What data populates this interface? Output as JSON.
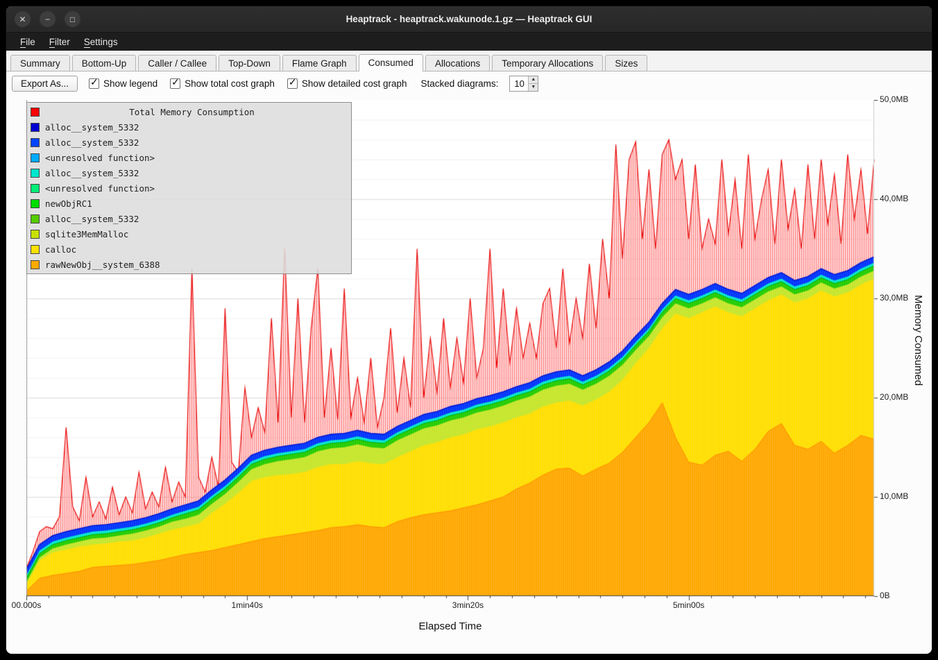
{
  "window": {
    "title": "Heaptrack - heaptrack.wakunode.1.gz — Heaptrack GUI",
    "buttons": [
      {
        "name": "close",
        "glyph": "✕"
      },
      {
        "name": "minimize",
        "glyph": "−"
      },
      {
        "name": "maximize",
        "glyph": "□"
      }
    ]
  },
  "menubar": {
    "items": [
      {
        "label": "File",
        "accel": "F"
      },
      {
        "label": "Filter",
        "accel": "F"
      },
      {
        "label": "Settings",
        "accel": "S"
      }
    ]
  },
  "tabs": {
    "items": [
      "Summary",
      "Bottom-Up",
      "Caller / Callee",
      "Top-Down",
      "Flame Graph",
      "Consumed",
      "Allocations",
      "Temporary Allocations",
      "Sizes"
    ],
    "active": "Consumed"
  },
  "toolbar": {
    "export_label": "Export As...",
    "checkboxes": [
      {
        "label": "Show legend",
        "checked": true
      },
      {
        "label": "Show total cost graph",
        "checked": true
      },
      {
        "label": "Show detailed cost graph",
        "checked": true
      }
    ],
    "stacked_label": "Stacked diagrams:",
    "stacked_value": "10"
  },
  "legend": {
    "title": "Total Memory Consumption",
    "title_color": "#ff0000",
    "entries": [
      {
        "color": "#0000d0",
        "label": "alloc__system_5332"
      },
      {
        "color": "#0044ff",
        "label": "alloc__system_5332"
      },
      {
        "color": "#00aaff",
        "label": "<unresolved function>"
      },
      {
        "color": "#00e6cc",
        "label": "alloc__system_5332"
      },
      {
        "color": "#00ee77",
        "label": "<unresolved function>"
      },
      {
        "color": "#00dd00",
        "label": "newObjRC1"
      },
      {
        "color": "#55cc00",
        "label": "alloc__system_5332"
      },
      {
        "color": "#c8e000",
        "label": "sqlite3MemMalloc"
      },
      {
        "color": "#ffe000",
        "label": "calloc"
      },
      {
        "color": "#ffaa00",
        "label": "rawNewObj__system_6388"
      }
    ]
  },
  "chart_data": {
    "type": "area",
    "stacked": true,
    "title": "Total Memory Consumption",
    "x_label": "Elapsed Time",
    "y_label": "Memory Consumed",
    "x_unit": "s",
    "y_unit": "MB",
    "x_max": 384,
    "ylim": [
      0,
      50
    ],
    "grid": {
      "minor_step": 2,
      "major_step": 10
    },
    "y_ticks": [
      {
        "v": 0,
        "label": "0B"
      },
      {
        "v": 10,
        "label": "10,0MB"
      },
      {
        "v": 20,
        "label": "20,0MB"
      },
      {
        "v": 30,
        "label": "30,0MB"
      },
      {
        "v": 40,
        "label": "40,0MB"
      },
      {
        "v": 50,
        "label": "50,0MB"
      }
    ],
    "x_ticks": [
      {
        "t": 0,
        "label": "00.000s"
      },
      {
        "t": 100,
        "label": "1min40s"
      },
      {
        "t": 200,
        "label": "3min20s"
      },
      {
        "t": 300,
        "label": "5min00s"
      }
    ],
    "bands_t_step": 6,
    "bands_note": "cumulative stacked tops in MB, outermost first, sampled every 6s",
    "bands": [
      {
        "name": "alloc__system_5332",
        "color": "#0033ff",
        "stroke": "#0018d4",
        "values": [
          2.7,
          5.2,
          6.1,
          6.5,
          6.8,
          7.1,
          7.2,
          7.4,
          7.6,
          7.9,
          8.3,
          8.8,
          9.2,
          9.6,
          10.7,
          11.7,
          12.9,
          14.2,
          14.7,
          15.0,
          15.2,
          15.4,
          16.0,
          16.3,
          16.4,
          16.7,
          16.4,
          16.3,
          17.1,
          17.7,
          18.3,
          18.6,
          19.1,
          19.4,
          19.9,
          20.2,
          20.6,
          21.1,
          21.5,
          22.2,
          22.6,
          22.8,
          22.2,
          22.8,
          23.6,
          24.7,
          26.2,
          27.6,
          29.5,
          30.9,
          30.4,
          30.9,
          31.5,
          30.9,
          30.5,
          31.3,
          32.1,
          32.6,
          31.8,
          32.2,
          33.0,
          32.4,
          32.8,
          33.6,
          34.2
        ]
      },
      {
        "name": "<unresolved function>",
        "color": "#00e6cc",
        "values": [
          2.1,
          4.6,
          5.5,
          5.9,
          6.2,
          6.5,
          6.6,
          6.8,
          7.0,
          7.3,
          7.7,
          8.2,
          8.6,
          9.0,
          10.1,
          11.1,
          12.3,
          13.6,
          14.1,
          14.4,
          14.6,
          14.8,
          15.4,
          15.7,
          15.8,
          16.1,
          15.8,
          15.7,
          16.5,
          17.1,
          17.7,
          18.0,
          18.5,
          18.8,
          19.3,
          19.6,
          20.0,
          20.5,
          20.9,
          21.6,
          22.0,
          22.2,
          21.6,
          22.2,
          23.0,
          24.1,
          25.6,
          27.0,
          28.9,
          30.3,
          29.8,
          30.3,
          30.9,
          30.3,
          29.9,
          30.7,
          31.5,
          32.0,
          31.2,
          31.6,
          32.4,
          31.8,
          32.2,
          33.0,
          33.6
        ]
      },
      {
        "name": "newObjRC1",
        "color": "#22cc00",
        "stroke": "#00b000",
        "values": [
          1.8,
          4.3,
          5.2,
          5.6,
          5.9,
          6.2,
          6.3,
          6.5,
          6.7,
          7.0,
          7.4,
          7.9,
          8.3,
          8.7,
          9.8,
          10.8,
          12.0,
          13.3,
          13.8,
          14.1,
          14.3,
          14.5,
          15.1,
          15.4,
          15.5,
          15.8,
          15.5,
          15.4,
          16.2,
          16.8,
          17.4,
          17.7,
          18.2,
          18.5,
          19.0,
          19.3,
          19.7,
          20.2,
          20.6,
          21.3,
          21.7,
          21.9,
          21.3,
          21.9,
          22.7,
          23.8,
          25.3,
          26.7,
          28.6,
          30.0,
          29.5,
          30.0,
          30.6,
          30.0,
          29.6,
          30.4,
          31.2,
          31.7,
          30.9,
          31.3,
          32.1,
          31.5,
          31.9,
          32.7,
          33.3
        ]
      },
      {
        "name": "sqlite3MemMalloc",
        "color": "#c6e62a",
        "values": [
          1.4,
          3.9,
          4.8,
          5.2,
          5.5,
          5.8,
          5.9,
          6.1,
          6.3,
          6.6,
          7.0,
          7.5,
          7.8,
          8.2,
          9.3,
          10.3,
          11.5,
          12.8,
          13.3,
          13.6,
          13.8,
          14.0,
          14.6,
          14.9,
          15.0,
          15.3,
          15.0,
          14.9,
          15.7,
          16.3,
          16.9,
          17.2,
          17.7,
          18.0,
          18.5,
          18.8,
          19.2,
          19.7,
          20.1,
          20.8,
          21.2,
          21.4,
          20.8,
          21.4,
          22.2,
          23.3,
          24.8,
          26.2,
          28.1,
          29.5,
          29.0,
          29.5,
          30.1,
          29.5,
          29.1,
          29.9,
          30.7,
          31.2,
          30.4,
          30.8,
          31.6,
          31.0,
          31.4,
          32.2,
          32.8
        ]
      },
      {
        "name": "calloc",
        "color": "#ffdf00",
        "values": [
          1.2,
          3.6,
          4.4,
          4.7,
          5.0,
          5.2,
          5.3,
          5.5,
          5.6,
          5.9,
          6.3,
          6.7,
          7.0,
          7.3,
          8.4,
          9.3,
          10.4,
          11.6,
          12.0,
          12.2,
          12.3,
          12.5,
          13.0,
          13.3,
          13.3,
          13.6,
          13.4,
          13.3,
          14.0,
          14.6,
          15.2,
          15.5,
          16.0,
          16.3,
          16.8,
          17.1,
          17.5,
          18.0,
          18.4,
          19.1,
          19.5,
          19.7,
          19.2,
          19.8,
          20.6,
          21.8,
          23.5,
          25.0,
          27.0,
          28.5,
          28.0,
          28.6,
          29.2,
          28.6,
          28.2,
          29.0,
          29.8,
          30.4,
          29.6,
          30.0,
          30.8,
          30.2,
          30.6,
          31.4,
          32.0
        ]
      },
      {
        "name": "rawNewObj__system_6388",
        "color": "#ffa800",
        "stroke": "#ff8a00",
        "values": [
          0.5,
          1.8,
          2.1,
          2.3,
          2.5,
          2.9,
          3.0,
          3.1,
          3.2,
          3.4,
          3.6,
          3.9,
          4.2,
          4.4,
          4.6,
          4.9,
          5.2,
          5.5,
          5.8,
          6.0,
          6.2,
          6.4,
          6.6,
          6.9,
          7.0,
          7.2,
          7.0,
          6.9,
          7.5,
          7.9,
          8.2,
          8.4,
          8.6,
          8.9,
          9.2,
          9.6,
          10.0,
          10.8,
          11.4,
          12.2,
          12.8,
          12.9,
          12.1,
          12.8,
          13.4,
          14.5,
          16.0,
          17.5,
          19.5,
          16.0,
          13.5,
          13.2,
          14.2,
          14.6,
          13.6,
          14.8,
          16.6,
          17.4,
          15.2,
          14.8,
          15.6,
          14.4,
          15.2,
          16.2,
          15.8
        ]
      }
    ],
    "total": {
      "name": "Total Memory Consumption",
      "color": "#ff0000",
      "t_step": 3,
      "values": [
        2.8,
        4.5,
        6.5,
        7.0,
        6.8,
        8.0,
        17.0,
        9.0,
        7.6,
        12.0,
        8.0,
        9.5,
        7.8,
        11.0,
        8.2,
        10.0,
        8.4,
        12.5,
        8.8,
        10.5,
        9.0,
        13.0,
        9.5,
        11.5,
        10.0,
        33.0,
        12.0,
        10.5,
        14.0,
        11.0,
        29.0,
        13.5,
        12.5,
        21.0,
        16.0,
        19.0,
        16.5,
        28.0,
        17.5,
        35.0,
        18.0,
        30.0,
        17.5,
        27.0,
        33.0,
        18.0,
        25.0,
        17.8,
        31.0,
        18.0,
        22.0,
        17.5,
        24.0,
        17.0,
        20.0,
        27.0,
        18.5,
        24.0,
        19.0,
        35.0,
        20.0,
        26.0,
        20.5,
        28.0,
        21.0,
        26.0,
        21.5,
        30.0,
        22.0,
        25.0,
        35.0,
        23.0,
        31.0,
        23.5,
        29.0,
        24.0,
        27.5,
        24.0,
        29.5,
        31.0,
        25.0,
        33.0,
        25.5,
        30.0,
        26.0,
        33.5,
        27.0,
        36.0,
        30.0,
        45.5,
        34.0,
        44.0,
        45.8,
        36.0,
        43.0,
        35.0,
        44.5,
        46.0,
        42.0,
        44.0,
        36.0,
        43.5,
        35.0,
        38.0,
        35.5,
        44.0,
        36.5,
        42.0,
        35.0,
        44.5,
        36.0,
        40.0,
        43.0,
        35.5,
        44.0,
        37.0,
        41.0,
        35.0,
        43.5,
        36.0,
        44.0,
        37.5,
        42.5,
        35.5,
        44.5,
        38.0,
        43.0,
        36.5,
        44.0
      ]
    }
  }
}
